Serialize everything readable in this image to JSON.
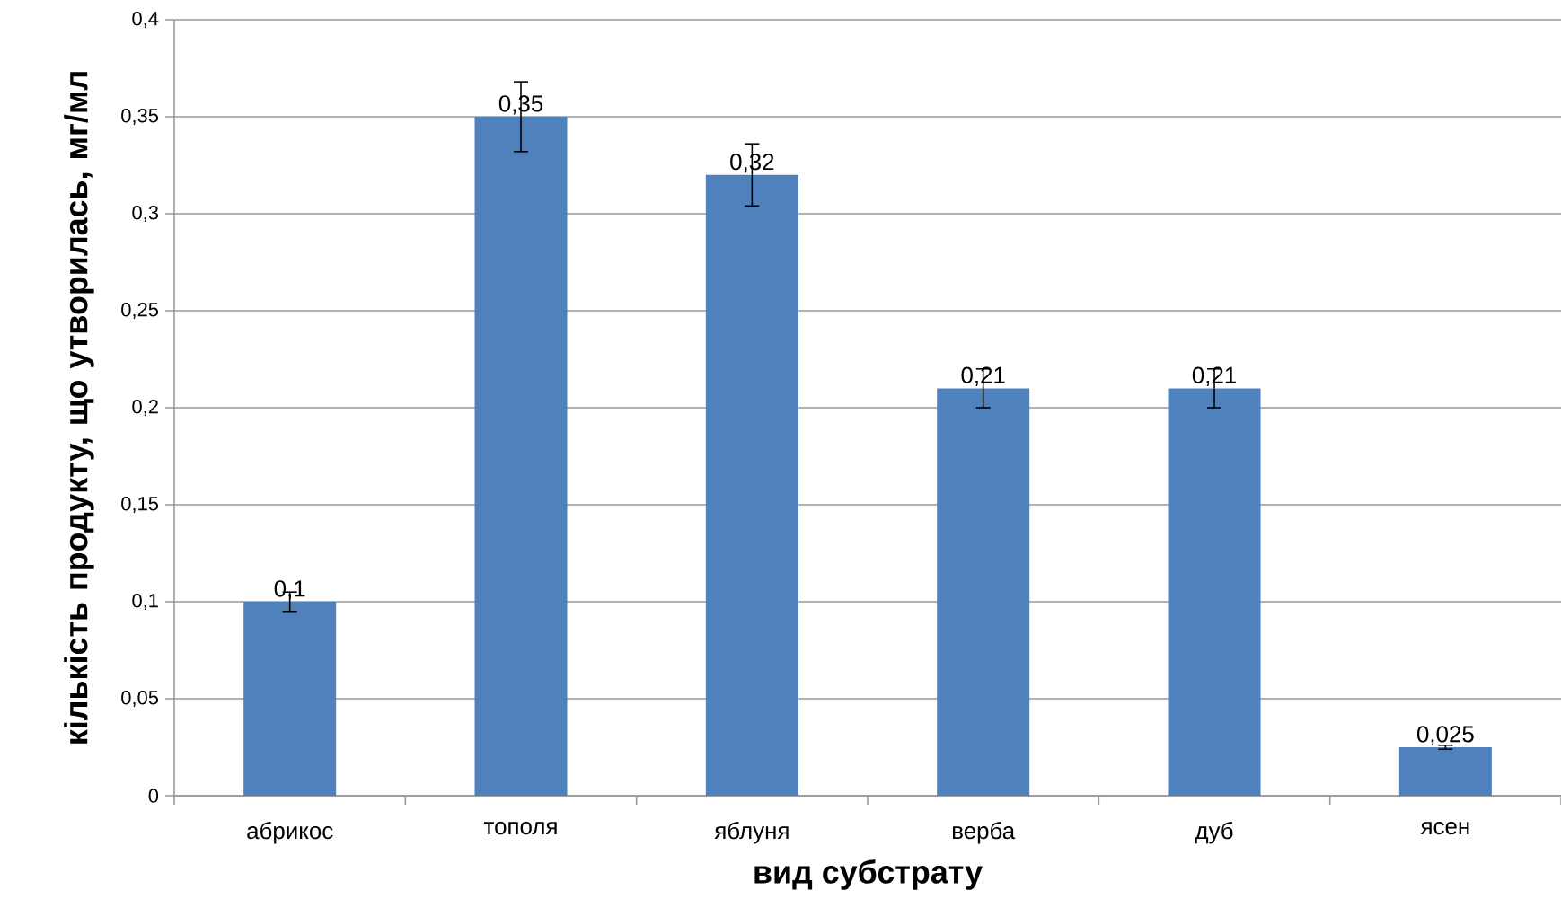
{
  "chart_data": {
    "type": "bar",
    "xlabel": "вид субстрату",
    "ylabel": "кількість продукту, що утворилась, мг/мл",
    "categories": [
      "абрикос",
      "тополя",
      "яблуня",
      "верба",
      "дуб",
      "ясен"
    ],
    "values": [
      0.1,
      0.35,
      0.32,
      0.21,
      0.21,
      0.025
    ],
    "errors": [
      0.005,
      0.018,
      0.016,
      0.01,
      0.01,
      0.001
    ],
    "value_labels": [
      "0,1",
      "0,35",
      "0,32",
      "0,21",
      "0,21",
      "0,025"
    ],
    "color": "#4f81bd",
    "ylim": [
      0,
      0.4
    ],
    "yticks": [
      {
        "value": 0,
        "label": "0"
      },
      {
        "value": 0.05,
        "label": "0,05"
      },
      {
        "value": 0.1,
        "label": "0,1"
      },
      {
        "value": 0.15,
        "label": "0,15"
      },
      {
        "value": 0.2,
        "label": "0,2"
      },
      {
        "value": 0.25,
        "label": "0,25"
      },
      {
        "value": 0.3,
        "label": "0,3"
      },
      {
        "value": 0.35,
        "label": "0,35"
      },
      {
        "value": 0.4,
        "label": "0,4"
      }
    ],
    "grid": "y"
  }
}
